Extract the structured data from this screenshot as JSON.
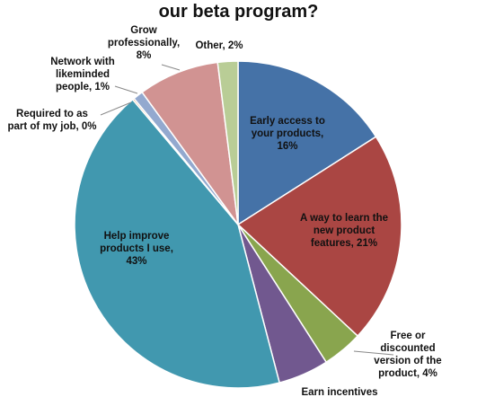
{
  "chart_data": {
    "type": "pie",
    "title": "our beta program?",
    "slices": [
      {
        "label": "Early access to your products",
        "value": 16,
        "display": "Early access to|your products,|16%",
        "color": "#4572a7"
      },
      {
        "label": "A way to learn the new product features",
        "value": 21,
        "display": "A way to learn the|new product|features, 21%",
        "color": "#aa4643"
      },
      {
        "label": "Free or discounted version of the product",
        "value": 4,
        "display": "Free or|discounted|version of the|product, 4%",
        "color": "#89a54e"
      },
      {
        "label": "Earn incentives",
        "value": 5,
        "display": "Earn incentives",
        "color": "#71588f"
      },
      {
        "label": "Help improve products I use",
        "value": 43,
        "display": "Help improve|products I use,|43%",
        "color": "#4198af"
      },
      {
        "label": "Required to as part of my job",
        "value": 0,
        "display": "Required to as|part of my job, 0%",
        "color": "#db843d"
      },
      {
        "label": "Network with likeminded people",
        "value": 1,
        "display": "Network with|likeminded|people, 1%",
        "color": "#93a9cf"
      },
      {
        "label": "Grow professionally",
        "value": 8,
        "display": "Grow|professionally,|8%",
        "color": "#d19392"
      },
      {
        "label": "Other",
        "value": 2,
        "display": "Other, 2%",
        "color": "#b9cd96"
      }
    ],
    "legend": "none"
  }
}
